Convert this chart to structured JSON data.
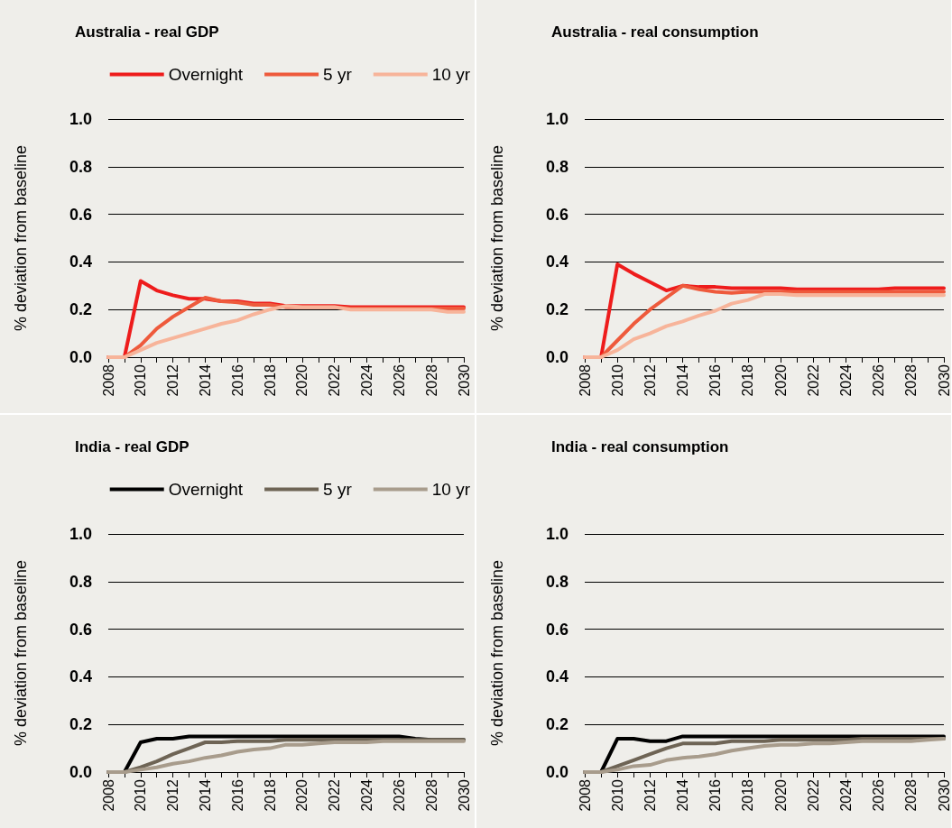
{
  "chart_data": [
    {
      "type": "line",
      "title": "Australia - real GDP",
      "ylabel": "% deviation from baseline",
      "legend": "top",
      "grid": "y",
      "line_style": "solid",
      "marker": "none",
      "x": [
        2008,
        2009,
        2010,
        2011,
        2012,
        2013,
        2014,
        2015,
        2016,
        2017,
        2018,
        2019,
        2020,
        2021,
        2022,
        2023,
        2024,
        2025,
        2026,
        2027,
        2028,
        2029,
        2030
      ],
      "xlim": [
        2008,
        2030
      ],
      "xticks": [
        2008,
        {
          "value": 2009,
          "label": null
        },
        2010,
        {
          "value": 2011,
          "label": null
        },
        2012,
        {
          "value": 2013,
          "label": null
        },
        2014,
        {
          "value": 2015,
          "label": null
        },
        2016,
        {
          "value": 2017,
          "label": null
        },
        2018,
        {
          "value": 2019,
          "label": null
        },
        2020,
        {
          "value": 2021,
          "label": null
        },
        2022,
        {
          "value": 2023,
          "label": null
        },
        2024,
        {
          "value": 2025,
          "label": null
        },
        2026,
        {
          "value": 2027,
          "label": null
        },
        2028,
        {
          "value": 2029,
          "label": null
        },
        2030
      ],
      "ylim": [
        0,
        1
      ],
      "yticks": [
        {
          "value": 0,
          "label": "0.0"
        },
        {
          "value": 0.2,
          "label": "0.2"
        },
        {
          "value": 0.4,
          "label": "0.4"
        },
        {
          "value": 0.6,
          "label": "0.6"
        },
        {
          "value": 0.8,
          "label": "0.8"
        },
        {
          "value": 1,
          "label": "1.0"
        }
      ],
      "series": [
        {
          "name": "Overnight",
          "color": "#ee1c1c",
          "values": [
            0,
            0,
            0.32,
            0.28,
            0.26,
            0.245,
            0.245,
            0.235,
            0.235,
            0.225,
            0.225,
            0.215,
            0.215,
            0.215,
            0.215,
            0.21,
            0.21,
            0.21,
            0.21,
            0.21,
            0.21,
            0.21,
            0.21
          ]
        },
        {
          "name": "5 yr",
          "color": "#ee5a3c",
          "values": [
            0,
            0,
            0.05,
            0.12,
            0.17,
            0.21,
            0.25,
            0.235,
            0.23,
            0.22,
            0.22,
            0.21,
            0.21,
            0.21,
            0.21,
            0.205,
            0.205,
            0.205,
            0.205,
            0.205,
            0.205,
            0.205,
            0.205
          ]
        },
        {
          "name": "10 yr",
          "color": "#f7b49a",
          "values": [
            0,
            0,
            0.03,
            0.06,
            0.08,
            0.1,
            0.12,
            0.14,
            0.155,
            0.18,
            0.2,
            0.215,
            0.21,
            0.21,
            0.21,
            0.2,
            0.2,
            0.2,
            0.2,
            0.2,
            0.2,
            0.19,
            0.19
          ]
        }
      ]
    },
    {
      "type": "line",
      "title": "Australia - real consumption",
      "ylabel": "% deviation from baseline",
      "legend": false,
      "grid": "y",
      "line_style": "solid",
      "marker": "none",
      "x": [
        2008,
        2009,
        2010,
        2011,
        2012,
        2013,
        2014,
        2015,
        2016,
        2017,
        2018,
        2019,
        2020,
        2021,
        2022,
        2023,
        2024,
        2025,
        2026,
        2027,
        2028,
        2029,
        2030
      ],
      "xlim": [
        2008,
        2030
      ],
      "xticks": [
        2008,
        {
          "value": 2009,
          "label": null
        },
        2010,
        {
          "value": 2011,
          "label": null
        },
        2012,
        {
          "value": 2013,
          "label": null
        },
        2014,
        {
          "value": 2015,
          "label": null
        },
        2016,
        {
          "value": 2017,
          "label": null
        },
        2018,
        {
          "value": 2019,
          "label": null
        },
        2020,
        {
          "value": 2021,
          "label": null
        },
        2022,
        {
          "value": 2023,
          "label": null
        },
        2024,
        {
          "value": 2025,
          "label": null
        },
        2026,
        {
          "value": 2027,
          "label": null
        },
        2028,
        {
          "value": 2029,
          "label": null
        },
        2030
      ],
      "ylim": [
        0,
        1
      ],
      "yticks": [
        {
          "value": 0,
          "label": "0.0"
        },
        {
          "value": 0.2,
          "label": "0.2"
        },
        {
          "value": 0.4,
          "label": "0.4"
        },
        {
          "value": 0.6,
          "label": "0.6"
        },
        {
          "value": 0.8,
          "label": "0.8"
        },
        {
          "value": 1,
          "label": "1.0"
        }
      ],
      "series": [
        {
          "color": "#ee1c1c",
          "values": [
            0,
            0,
            0.39,
            0.35,
            0.315,
            0.28,
            0.3,
            0.295,
            0.295,
            0.29,
            0.29,
            0.29,
            0.29,
            0.285,
            0.285,
            0.285,
            0.285,
            0.285,
            0.285,
            0.29,
            0.29,
            0.29,
            0.29
          ]
        },
        {
          "color": "#ee5a3c",
          "values": [
            0,
            0,
            0.07,
            0.14,
            0.2,
            0.25,
            0.3,
            0.285,
            0.275,
            0.27,
            0.275,
            0.275,
            0.275,
            0.275,
            0.275,
            0.275,
            0.275,
            0.275,
            0.275,
            0.275,
            0.275,
            0.275,
            0.275
          ]
        },
        {
          "color": "#f7b49a",
          "values": [
            0,
            0,
            0.03,
            0.075,
            0.1,
            0.13,
            0.15,
            0.175,
            0.195,
            0.225,
            0.24,
            0.265,
            0.265,
            0.26,
            0.26,
            0.26,
            0.26,
            0.26,
            0.26,
            0.26,
            0.26,
            0.26,
            0.26
          ]
        }
      ]
    },
    {
      "type": "line",
      "title": "India - real GDP",
      "ylabel": "% deviation from baseline",
      "legend": "top",
      "grid": "y",
      "line_style": "solid",
      "marker": "none",
      "x": [
        2008,
        2009,
        2010,
        2011,
        2012,
        2013,
        2014,
        2015,
        2016,
        2017,
        2018,
        2019,
        2020,
        2021,
        2022,
        2023,
        2024,
        2025,
        2026,
        2027,
        2028,
        2029,
        2030
      ],
      "xlim": [
        2008,
        2030
      ],
      "xticks": [
        2008,
        {
          "value": 2009,
          "label": null
        },
        2010,
        {
          "value": 2011,
          "label": null
        },
        2012,
        {
          "value": 2013,
          "label": null
        },
        2014,
        {
          "value": 2015,
          "label": null
        },
        2016,
        {
          "value": 2017,
          "label": null
        },
        2018,
        {
          "value": 2019,
          "label": null
        },
        2020,
        {
          "value": 2021,
          "label": null
        },
        2022,
        {
          "value": 2023,
          "label": null
        },
        2024,
        {
          "value": 2025,
          "label": null
        },
        2026,
        {
          "value": 2027,
          "label": null
        },
        2028,
        {
          "value": 2029,
          "label": null
        },
        2030
      ],
      "ylim": [
        0,
        1
      ],
      "yticks": [
        {
          "value": 0,
          "label": "0.0"
        },
        {
          "value": 0.2,
          "label": "0.2"
        },
        {
          "value": 0.4,
          "label": "0.4"
        },
        {
          "value": 0.6,
          "label": "0.6"
        },
        {
          "value": 0.8,
          "label": "0.8"
        },
        {
          "value": 1,
          "label": "1.0"
        }
      ],
      "series": [
        {
          "name": "Overnight",
          "color": "#000000",
          "values": [
            0,
            0,
            0.125,
            0.14,
            0.14,
            0.15,
            0.15,
            0.15,
            0.15,
            0.15,
            0.15,
            0.15,
            0.15,
            0.15,
            0.15,
            0.15,
            0.15,
            0.15,
            0.15,
            0.14,
            0.135,
            0.135,
            0.135
          ]
        },
        {
          "name": "5 yr",
          "color": "#6e6455",
          "values": [
            0,
            0,
            0.02,
            0.045,
            0.075,
            0.1,
            0.125,
            0.125,
            0.13,
            0.13,
            0.13,
            0.135,
            0.135,
            0.135,
            0.135,
            0.135,
            0.135,
            0.135,
            0.135,
            0.135,
            0.135,
            0.135,
            0.135
          ]
        },
        {
          "name": "10 yr",
          "color": "#a89c8c",
          "values": [
            0,
            0,
            0.01,
            0.02,
            0.035,
            0.045,
            0.06,
            0.07,
            0.085,
            0.095,
            0.1,
            0.115,
            0.115,
            0.12,
            0.125,
            0.125,
            0.125,
            0.13,
            0.13,
            0.13,
            0.13,
            0.13,
            0.13
          ]
        }
      ]
    },
    {
      "type": "line",
      "title": "India - real consumption",
      "ylabel": "% deviation from baseline",
      "legend": false,
      "grid": "y",
      "line_style": "solid",
      "marker": "none",
      "x": [
        2008,
        2009,
        2010,
        2011,
        2012,
        2013,
        2014,
        2015,
        2016,
        2017,
        2018,
        2019,
        2020,
        2021,
        2022,
        2023,
        2024,
        2025,
        2026,
        2027,
        2028,
        2029,
        2030
      ],
      "xlim": [
        2008,
        2030
      ],
      "xticks": [
        2008,
        {
          "value": 2009,
          "label": null
        },
        2010,
        {
          "value": 2011,
          "label": null
        },
        2012,
        {
          "value": 2013,
          "label": null
        },
        2014,
        {
          "value": 2015,
          "label": null
        },
        2016,
        {
          "value": 2017,
          "label": null
        },
        2018,
        {
          "value": 2019,
          "label": null
        },
        2020,
        {
          "value": 2021,
          "label": null
        },
        2022,
        {
          "value": 2023,
          "label": null
        },
        2024,
        {
          "value": 2025,
          "label": null
        },
        2026,
        {
          "value": 2027,
          "label": null
        },
        2028,
        {
          "value": 2029,
          "label": null
        },
        2030
      ],
      "ylim": [
        0,
        1
      ],
      "yticks": [
        {
          "value": 0,
          "label": "0.0"
        },
        {
          "value": 0.2,
          "label": "0.2"
        },
        {
          "value": 0.4,
          "label": "0.4"
        },
        {
          "value": 0.6,
          "label": "0.6"
        },
        {
          "value": 0.8,
          "label": "0.8"
        },
        {
          "value": 1,
          "label": "1.0"
        }
      ],
      "series": [
        {
          "color": "#000000",
          "values": [
            0,
            0,
            0.14,
            0.14,
            0.13,
            0.13,
            0.15,
            0.15,
            0.15,
            0.15,
            0.15,
            0.15,
            0.15,
            0.15,
            0.15,
            0.15,
            0.15,
            0.15,
            0.15,
            0.15,
            0.15,
            0.15,
            0.15
          ]
        },
        {
          "color": "#6e6455",
          "values": [
            0,
            0,
            0.025,
            0.05,
            0.075,
            0.1,
            0.12,
            0.12,
            0.12,
            0.13,
            0.13,
            0.13,
            0.135,
            0.135,
            0.135,
            0.135,
            0.135,
            0.14,
            0.14,
            0.14,
            0.14,
            0.14,
            0.14
          ]
        },
        {
          "color": "#a89c8c",
          "values": [
            0,
            0,
            0.01,
            0.025,
            0.03,
            0.05,
            0.06,
            0.065,
            0.075,
            0.09,
            0.1,
            0.11,
            0.115,
            0.115,
            0.12,
            0.12,
            0.125,
            0.13,
            0.13,
            0.13,
            0.13,
            0.135,
            0.14
          ]
        }
      ]
    }
  ]
}
